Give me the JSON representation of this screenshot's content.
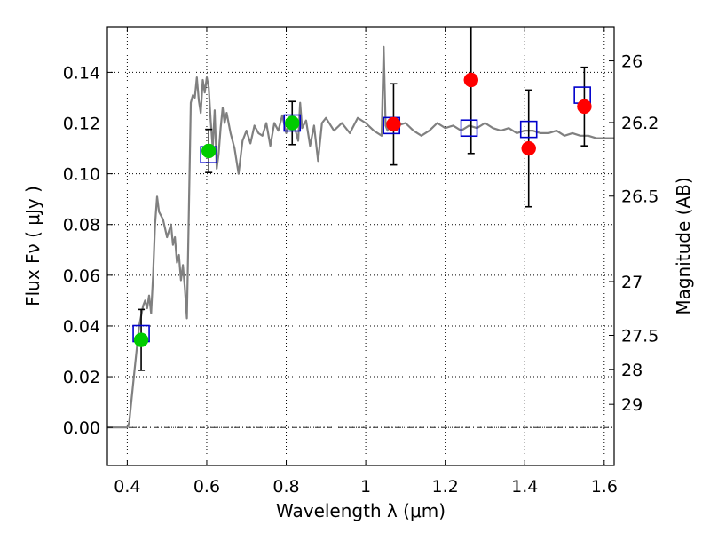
{
  "chart_data": {
    "type": "scatter",
    "xlabel": "Wavelength  λ (μm)",
    "ylabel": "Flux  Fν  ( μJy )",
    "ylabel_right": "Magnitude (AB)",
    "xlim": [
      0.35,
      1.625
    ],
    "ylim": [
      -0.015,
      0.158
    ],
    "grid": true,
    "x_ticks": [
      0.4,
      0.6,
      0.8,
      1.0,
      1.2,
      1.4,
      1.6
    ],
    "x_tick_labels": [
      "0.4",
      "0.6",
      "0.8",
      "1",
      "1.2",
      "1.4",
      "1.6"
    ],
    "y_ticks": [
      0.0,
      0.02,
      0.04,
      0.06,
      0.08,
      0.1,
      0.12,
      0.14
    ],
    "y_tick_labels": [
      "0.00",
      "0.02",
      "0.04",
      "0.06",
      "0.08",
      "0.10",
      "0.12",
      "0.14"
    ],
    "right_ticks": [
      {
        "label": "26",
        "flux": 0.1445
      },
      {
        "label": "26.2",
        "flux": 0.1202
      },
      {
        "label": "26.5",
        "flux": 0.0912
      },
      {
        "label": "27",
        "flux": 0.0575
      },
      {
        "label": "27.5",
        "flux": 0.0363
      },
      {
        "label": "28",
        "flux": 0.0229
      },
      {
        "label": "29",
        "flux": 0.0091
      }
    ],
    "model_spectrum": {
      "color": "#808080",
      "x": [
        0.35,
        0.4,
        0.405,
        0.41,
        0.42,
        0.43,
        0.44,
        0.445,
        0.45,
        0.455,
        0.46,
        0.465,
        0.47,
        0.475,
        0.48,
        0.49,
        0.5,
        0.51,
        0.515,
        0.52,
        0.525,
        0.53,
        0.535,
        0.54,
        0.545,
        0.55,
        0.555,
        0.56,
        0.565,
        0.57,
        0.575,
        0.58,
        0.585,
        0.59,
        0.595,
        0.6,
        0.605,
        0.61,
        0.615,
        0.62,
        0.625,
        0.63,
        0.635,
        0.64,
        0.645,
        0.65,
        0.66,
        0.67,
        0.68,
        0.69,
        0.7,
        0.71,
        0.72,
        0.73,
        0.74,
        0.75,
        0.76,
        0.77,
        0.78,
        0.79,
        0.8,
        0.81,
        0.82,
        0.83,
        0.835,
        0.84,
        0.85,
        0.86,
        0.87,
        0.88,
        0.89,
        0.9,
        0.92,
        0.94,
        0.96,
        0.98,
        1.0,
        1.02,
        1.04,
        1.045,
        1.05,
        1.055,
        1.06,
        1.08,
        1.1,
        1.12,
        1.14,
        1.16,
        1.18,
        1.2,
        1.22,
        1.24,
        1.26,
        1.28,
        1.3,
        1.32,
        1.34,
        1.36,
        1.38,
        1.4,
        1.42,
        1.44,
        1.46,
        1.48,
        1.5,
        1.52,
        1.54,
        1.56,
        1.58,
        1.6,
        1.625
      ],
      "y": [
        0.0,
        0.0,
        0.002,
        0.01,
        0.025,
        0.04,
        0.048,
        0.05,
        0.047,
        0.052,
        0.045,
        0.06,
        0.08,
        0.091,
        0.085,
        0.082,
        0.075,
        0.08,
        0.072,
        0.075,
        0.065,
        0.068,
        0.058,
        0.064,
        0.055,
        0.043,
        0.085,
        0.128,
        0.131,
        0.13,
        0.138,
        0.129,
        0.124,
        0.137,
        0.132,
        0.138,
        0.134,
        0.121,
        0.11,
        0.125,
        0.102,
        0.108,
        0.118,
        0.126,
        0.12,
        0.124,
        0.116,
        0.11,
        0.1,
        0.113,
        0.117,
        0.112,
        0.119,
        0.116,
        0.115,
        0.12,
        0.111,
        0.12,
        0.117,
        0.123,
        0.116,
        0.122,
        0.119,
        0.113,
        0.128,
        0.118,
        0.121,
        0.111,
        0.119,
        0.105,
        0.12,
        0.122,
        0.117,
        0.12,
        0.116,
        0.122,
        0.12,
        0.117,
        0.115,
        0.15,
        0.119,
        0.117,
        0.121,
        0.119,
        0.12,
        0.117,
        0.115,
        0.117,
        0.12,
        0.118,
        0.119,
        0.117,
        0.119,
        0.118,
        0.12,
        0.118,
        0.117,
        0.118,
        0.116,
        0.117,
        0.117,
        0.116,
        0.116,
        0.117,
        0.115,
        0.116,
        0.115,
        0.115,
        0.114,
        0.114,
        0.114
      ]
    },
    "model_photometry": {
      "marker": "open-square",
      "color": "#0000cc",
      "points": [
        {
          "x": 0.435,
          "y": 0.037
        },
        {
          "x": 0.605,
          "y": 0.1075
        },
        {
          "x": 0.815,
          "y": 0.12
        },
        {
          "x": 1.065,
          "y": 0.119
        },
        {
          "x": 1.26,
          "y": 0.118
        },
        {
          "x": 1.41,
          "y": 0.1175
        },
        {
          "x": 1.545,
          "y": 0.131
        }
      ]
    },
    "series": [
      {
        "marker": "filled-circle",
        "color": "#00cc00",
        "points": [
          {
            "x": 0.435,
            "y": 0.0345,
            "yerr": 0.012
          },
          {
            "x": 0.605,
            "y": 0.109,
            "yerr": 0.0085
          },
          {
            "x": 0.815,
            "y": 0.12,
            "yerr": 0.0085
          }
        ]
      },
      {
        "marker": "filled-circle",
        "color": "#ff0000",
        "points": [
          {
            "x": 1.07,
            "y": 0.1195,
            "yerr": 0.016
          },
          {
            "x": 1.265,
            "y": 0.137,
            "yerr": 0.029
          },
          {
            "x": 1.41,
            "y": 0.11,
            "yerr": 0.023
          },
          {
            "x": 1.55,
            "y": 0.1265,
            "yerr": 0.0155
          }
        ]
      }
    ]
  }
}
